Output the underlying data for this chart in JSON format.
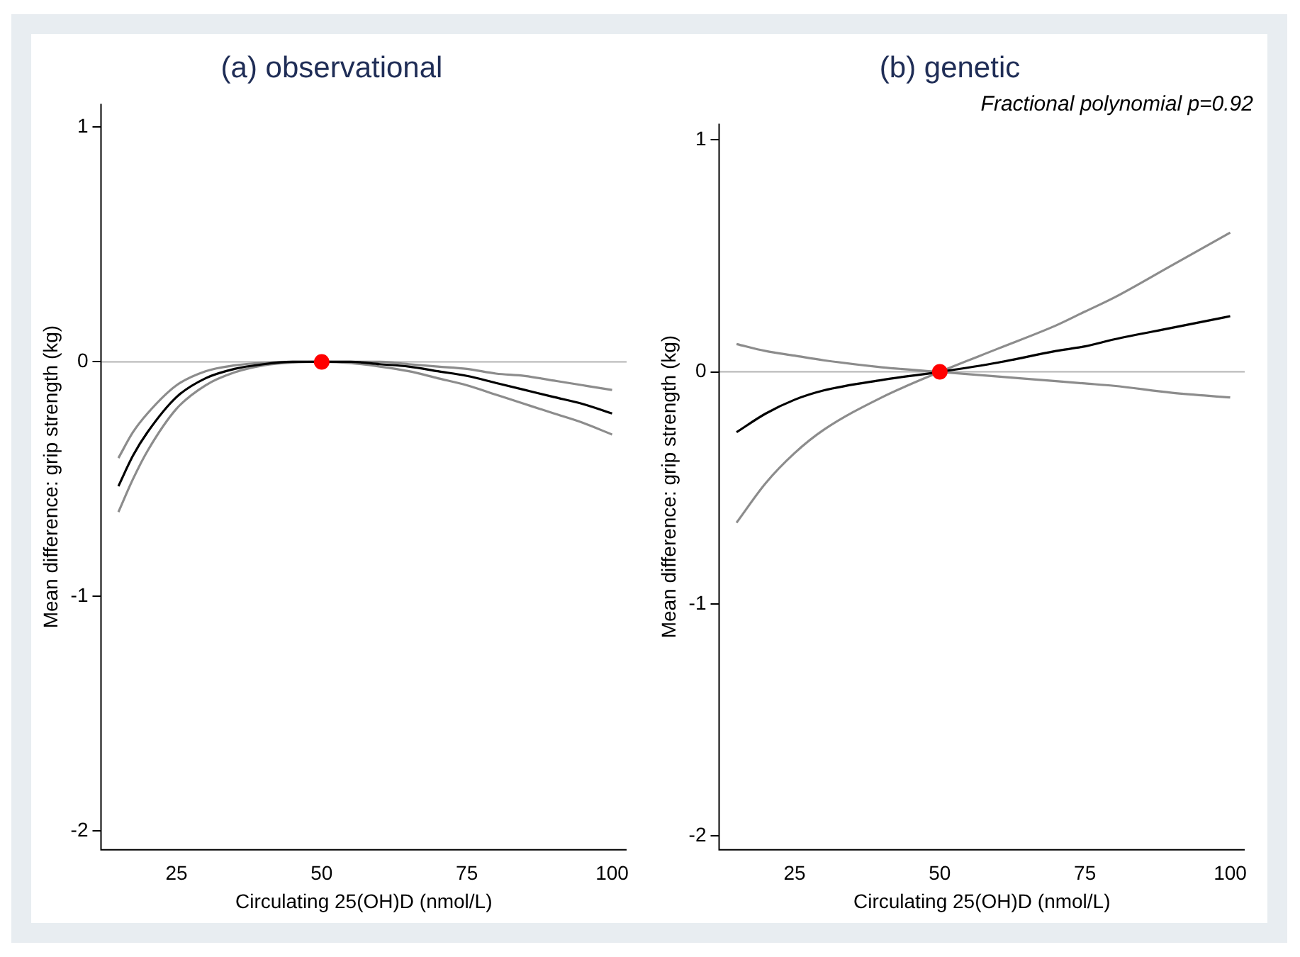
{
  "chart_data": [
    {
      "type": "line",
      "title": "(a) observational",
      "xlabel": "Circulating 25(OH)D (nmol/L)",
      "ylabel": "Mean difference: grip strength (kg)",
      "xlim": [
        12,
        102.5
      ],
      "xticks": [
        25,
        50,
        75,
        100
      ],
      "ylim": [
        -2.08,
        1.1
      ],
      "yticks": [
        -2,
        -1,
        0,
        1
      ],
      "grid": false,
      "legend": false,
      "x": [
        15,
        17.5,
        20,
        25,
        30,
        35,
        40,
        45,
        50,
        55,
        60,
        65,
        70,
        75,
        80,
        85,
        90,
        95,
        100
      ],
      "series": [
        {
          "color": "#8c8c8c",
          "values": [
            -0.41,
            -0.3,
            -0.22,
            -0.1,
            -0.04,
            -0.015,
            -0.004,
            0,
            0,
            0,
            0,
            -0.01,
            -0.02,
            -0.03,
            -0.05,
            -0.06,
            -0.08,
            -0.1,
            -0.12
          ]
        },
        {
          "color": "#8c8c8c",
          "values": [
            -0.64,
            -0.5,
            -0.38,
            -0.2,
            -0.1,
            -0.045,
            -0.015,
            -0.003,
            0,
            -0.005,
            -0.02,
            -0.04,
            -0.07,
            -0.1,
            -0.14,
            -0.18,
            -0.22,
            -0.26,
            -0.31
          ]
        },
        {
          "color": "#000000",
          "values": [
            -0.53,
            -0.4,
            -0.3,
            -0.15,
            -0.07,
            -0.03,
            -0.01,
            0,
            0,
            0,
            -0.01,
            -0.02,
            -0.04,
            -0.06,
            -0.09,
            -0.12,
            -0.15,
            -0.18,
            -0.22
          ]
        },
        {
          "type": "scatter",
          "marker": "circle",
          "color": "#ff0000",
          "x": [
            50
          ],
          "values": [
            0
          ]
        }
      ],
      "ref_lines": [
        {
          "axis": "y",
          "value": 0,
          "color": "#b4b4b4"
        }
      ]
    },
    {
      "type": "line",
      "title": "(b) genetic",
      "xlabel": "Circulating 25(OH)D (nmol/L)",
      "ylabel": "Mean difference: grip strength (kg)",
      "xlim": [
        12,
        102.5
      ],
      "xticks": [
        25,
        50,
        75,
        100
      ],
      "ylim": [
        -2.06,
        1.07
      ],
      "yticks": [
        -2,
        -1,
        0,
        1
      ],
      "grid": false,
      "legend": false,
      "annotations": [
        "Fractional polynomial p=0.92"
      ],
      "x": [
        15,
        20,
        25,
        30,
        40,
        50,
        60,
        70,
        75,
        80,
        90,
        100
      ],
      "series": [
        {
          "color": "#8c8c8c",
          "values": [
            -0.65,
            -0.48,
            -0.35,
            -0.25,
            -0.11,
            0,
            0.1,
            0.2,
            0.26,
            0.32,
            0.46,
            0.6
          ]
        },
        {
          "color": "#8c8c8c",
          "values": [
            0.12,
            0.09,
            0.07,
            0.05,
            0.02,
            0,
            -0.02,
            -0.04,
            -0.05,
            -0.06,
            -0.09,
            -0.11
          ]
        },
        {
          "color": "#000000",
          "values": [
            -0.26,
            -0.18,
            -0.12,
            -0.08,
            -0.035,
            0,
            0.04,
            0.09,
            0.11,
            0.14,
            0.19,
            0.24
          ]
        },
        {
          "type": "scatter",
          "marker": "circle",
          "color": "#ff0000",
          "x": [
            50
          ],
          "values": [
            0
          ]
        }
      ],
      "ref_lines": [
        {
          "axis": "y",
          "value": 0,
          "color": "#b4b4b4"
        }
      ]
    }
  ]
}
